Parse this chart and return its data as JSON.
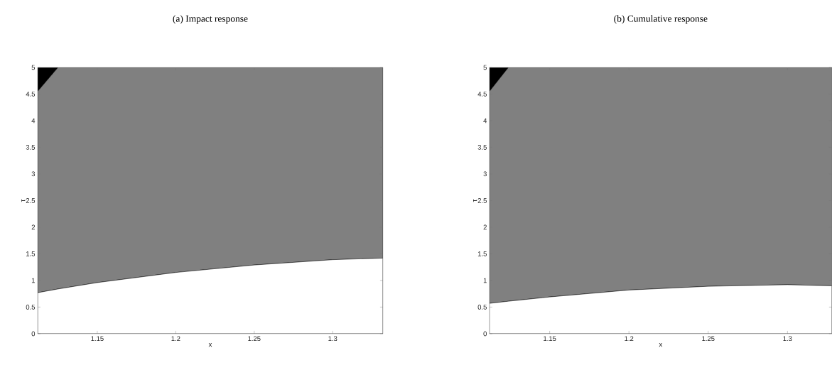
{
  "chart_data": [
    {
      "type": "area",
      "title": "(a) Impact response",
      "xlabel": "x",
      "ylabel": "τ",
      "stacked": true,
      "x": [
        1.112,
        1.125,
        1.15,
        1.2,
        1.25,
        1.3,
        1.332
      ],
      "series": [
        {
          "color": "#ffffff",
          "values": [
            0.77,
            0.84,
            0.96,
            1.15,
            1.29,
            1.39,
            1.42
          ]
        },
        {
          "color": "#808080",
          "values": [
            3.78,
            4.16,
            4.04,
            3.85,
            3.71,
            3.61,
            3.58
          ]
        },
        {
          "color": "#000000",
          "values": [
            0.45,
            0,
            0,
            0,
            0,
            0,
            0
          ]
        }
      ],
      "xlim": [
        1.112,
        1.332
      ],
      "ylim": [
        0,
        5
      ],
      "xticks": [
        1.15,
        1.2,
        1.25,
        1.3
      ],
      "yticks": [
        0,
        0.5,
        1,
        1.5,
        2,
        2.5,
        3,
        3.5,
        4,
        4.5,
        5
      ]
    },
    {
      "type": "area",
      "title": "(b) Cumulative response",
      "xlabel": "x",
      "ylabel": "τ",
      "stacked": true,
      "x": [
        1.112,
        1.124,
        1.15,
        1.2,
        1.25,
        1.3,
        1.328
      ],
      "series": [
        {
          "color": "#ffffff",
          "values": [
            0.57,
            0.61,
            0.69,
            0.82,
            0.89,
            0.92,
            0.9
          ]
        },
        {
          "color": "#808080",
          "values": [
            3.98,
            4.39,
            4.31,
            4.18,
            4.11,
            4.08,
            4.1
          ]
        },
        {
          "color": "#000000",
          "values": [
            0.45,
            0,
            0,
            0,
            0,
            0,
            0
          ]
        }
      ],
      "xlim": [
        1.112,
        1.328
      ],
      "ylim": [
        0,
        5
      ],
      "xticks": [
        1.15,
        1.2,
        1.25,
        1.3
      ],
      "yticks": [
        0,
        0.5,
        1,
        1.5,
        2,
        2.5,
        3,
        3.5,
        4,
        4.5,
        5
      ]
    }
  ]
}
